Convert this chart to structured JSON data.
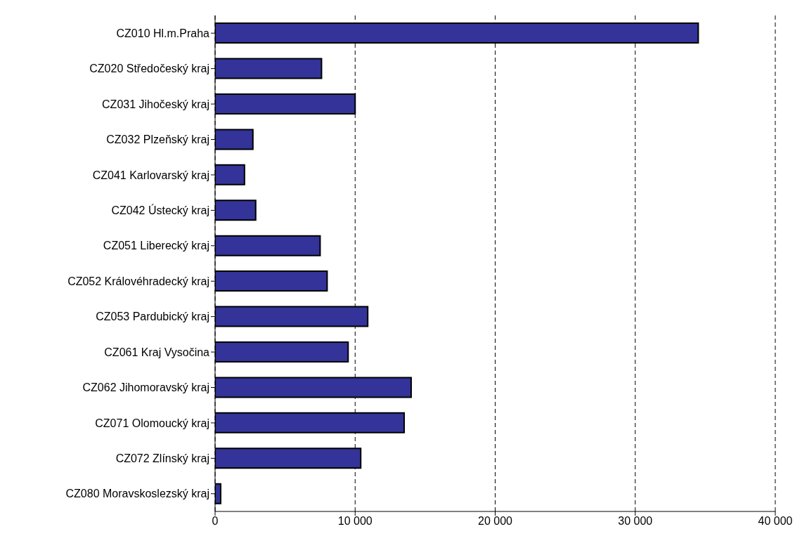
{
  "chart_data": {
    "type": "bar",
    "orientation": "horizontal",
    "categories": [
      "CZ010 Hl.m.Praha",
      "CZ020 Středočeský kraj",
      "CZ031 Jihočeský kraj",
      "CZ032 Plzeňský kraj",
      "CZ041 Karlovarský kraj",
      "CZ042 Ústecký kraj",
      "CZ051 Liberecký kraj",
      "CZ052 Královéhradecký kraj",
      "CZ053 Pardubický kraj",
      "CZ061 Kraj Vysočina",
      "CZ062 Jihomoravský kraj",
      "CZ071 Olomoucký kraj",
      "CZ072 Zlínský kraj",
      "CZ080 Moravskoslezský kraj"
    ],
    "values": [
      34500,
      7600,
      10000,
      2700,
      2100,
      2900,
      7500,
      8000,
      10900,
      9500,
      14000,
      13500,
      10400,
      400
    ],
    "color": "#333399",
    "xlim": [
      0,
      40000
    ],
    "xticks": [
      0,
      {
        "value": 10000,
        "label": "10 000"
      },
      {
        "value": 20000,
        "label": "20 000"
      },
      {
        "value": 30000,
        "label": "30 000"
      },
      {
        "value": 40000,
        "label": "40 000"
      }
    ],
    "grid": "x"
  }
}
